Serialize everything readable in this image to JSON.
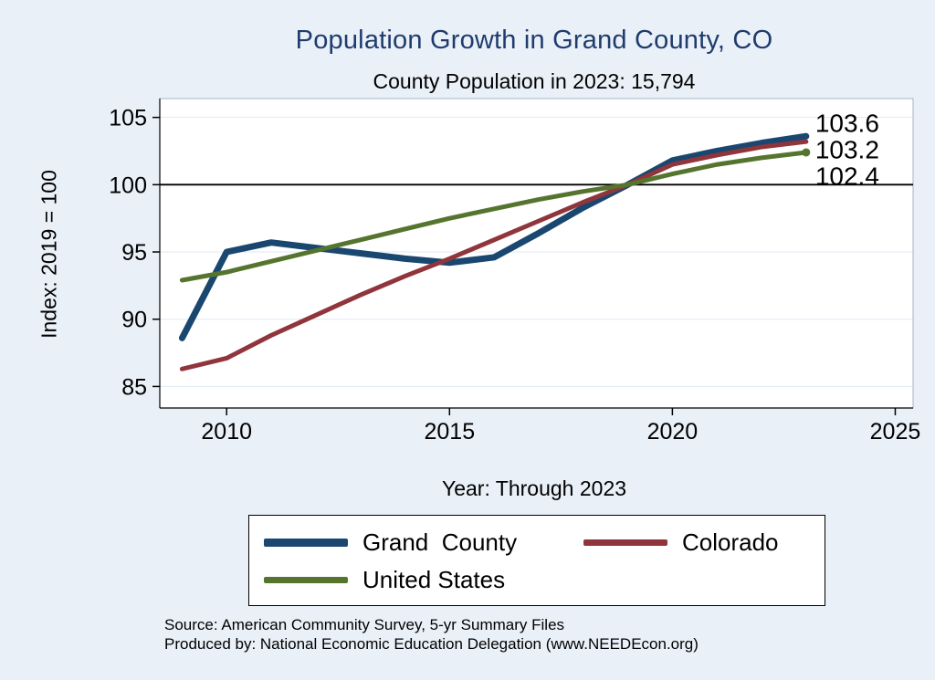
{
  "title": "Population Growth in Grand County, CO",
  "subtitle": "County Population in 2023: 15,794",
  "source_line1": "Source: American Community Survey, 5-yr Summary Files",
  "source_line2": "Produced by: National Economic Education Delegation (www.NEEDEcon.org)",
  "chart_data": {
    "type": "line",
    "title": "Population Growth in Grand County, CO",
    "subtitle": "County Population in 2023: 15,794",
    "xlabel": "Year: Through 2023",
    "ylabel": "Index: 2019 = 100",
    "x": [
      2009,
      2010,
      2011,
      2012,
      2013,
      2014,
      2015,
      2016,
      2017,
      2018,
      2019,
      2020,
      2021,
      2022,
      2023
    ],
    "series": [
      {
        "name": "Grand  County",
        "color": "#1a476f",
        "line_width": 7,
        "values": [
          88.6,
          95.0,
          95.7,
          95.3,
          94.9,
          94.5,
          94.2,
          94.6,
          96.4,
          98.3,
          100.0,
          101.8,
          102.5,
          103.1,
          103.6
        ],
        "end_label": "103.6"
      },
      {
        "name": "Colorado",
        "color": "#90353b",
        "line_width": 5,
        "values": [
          86.3,
          87.1,
          88.8,
          90.3,
          91.8,
          93.2,
          94.5,
          95.9,
          97.3,
          98.7,
          100.0,
          101.5,
          102.2,
          102.8,
          103.2
        ],
        "end_label": "103.2"
      },
      {
        "name": "United States",
        "color": "#55752f",
        "line_width": 5,
        "values": [
          92.9,
          93.5,
          94.3,
          95.1,
          95.9,
          96.7,
          97.5,
          98.2,
          98.9,
          99.5,
          100.0,
          100.8,
          101.5,
          102.0,
          102.4
        ],
        "end_label": "102.4",
        "end_marker": true
      }
    ],
    "xticks": [
      2010,
      2015,
      2020,
      2025
    ],
    "yticks": [
      85,
      90,
      95,
      100,
      105
    ],
    "xlim": [
      2008.5,
      2025.4
    ],
    "ylim": [
      83.4,
      106.4
    ],
    "ref_line": 100,
    "grid": true,
    "legend_position": "bottom"
  }
}
